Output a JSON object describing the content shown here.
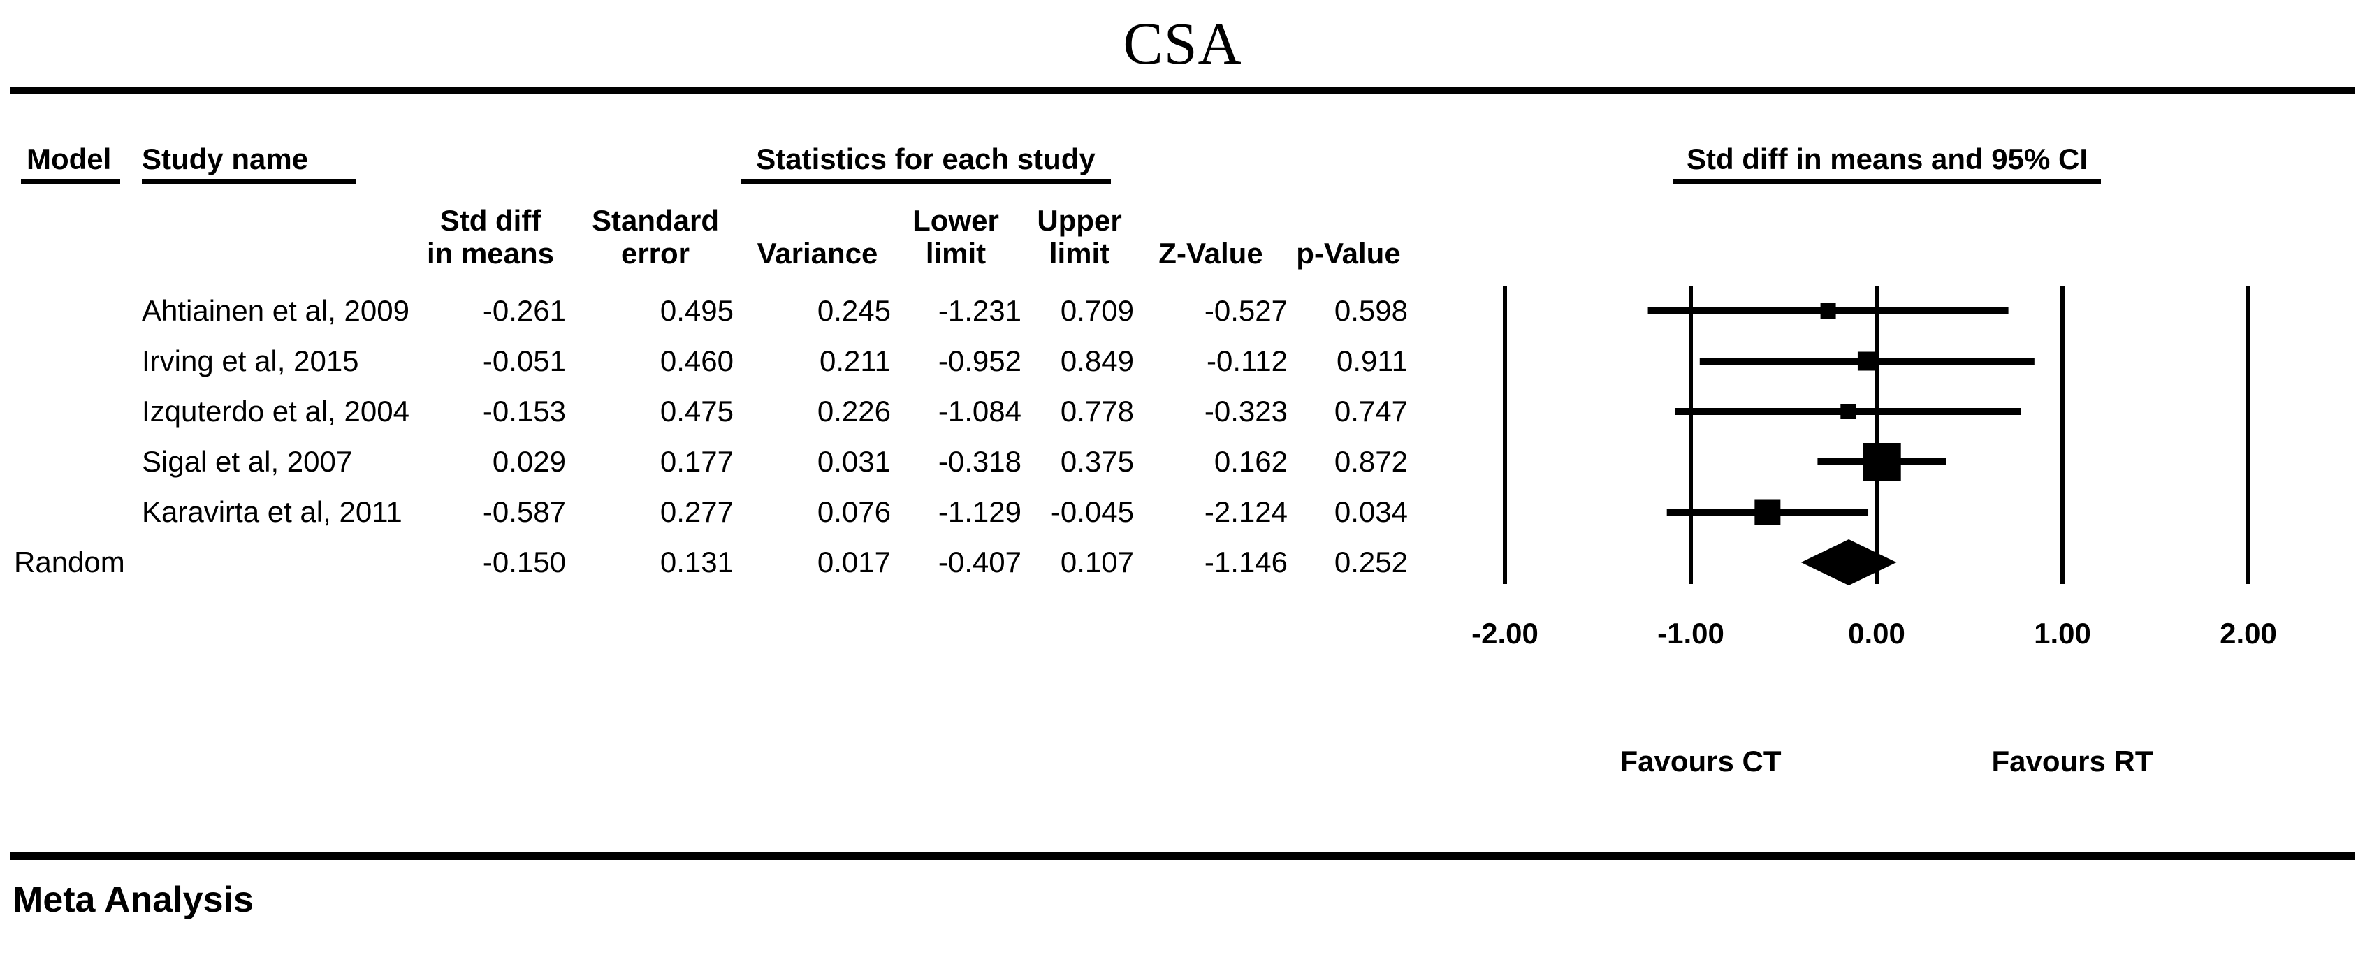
{
  "title": "CSA",
  "footer": "Meta Analysis",
  "colors": {
    "ink": "#000000",
    "background": "#ffffff"
  },
  "table": {
    "headers": {
      "model": "Model",
      "study_name": "Study name",
      "stats_group": "Statistics for each study",
      "plot_group": "Std diff in means and 95% CI"
    },
    "sub_headers": [
      {
        "line1": "Std diff",
        "line2": "in means"
      },
      {
        "line1": "Standard",
        "line2": "error"
      },
      {
        "line1": "",
        "line2": "Variance"
      },
      {
        "line1": "Lower",
        "line2": "limit"
      },
      {
        "line1": "Upper",
        "line2": "limit"
      },
      {
        "line1": "",
        "line2": "Z-Value"
      },
      {
        "line1": "",
        "line2": "p-Value"
      }
    ],
    "rows": [
      {
        "model": "",
        "study": "Ahtiainen et al, 2009",
        "values": [
          "-0.261",
          "0.495",
          "0.245",
          "-1.231",
          "0.709",
          "-0.527",
          "0.598"
        ]
      },
      {
        "model": "",
        "study": "Irving et al, 2015",
        "values": [
          "-0.051",
          "0.460",
          "0.211",
          "-0.952",
          "0.849",
          "-0.112",
          "0.911"
        ]
      },
      {
        "model": "",
        "study": "Izquterdo et al, 2004",
        "values": [
          "-0.153",
          "0.475",
          "0.226",
          "-1.084",
          "0.778",
          "-0.323",
          "0.747"
        ]
      },
      {
        "model": "",
        "study": "Sigal et al, 2007",
        "values": [
          "0.029",
          "0.177",
          "0.031",
          "-0.318",
          "0.375",
          "0.162",
          "0.872"
        ]
      },
      {
        "model": "",
        "study": "Karavirta et al, 2011",
        "values": [
          "-0.587",
          "0.277",
          "0.076",
          "-1.129",
          "-0.045",
          "-2.124",
          "0.034"
        ]
      },
      {
        "model": "Random",
        "study": "",
        "values": [
          "-0.150",
          "0.131",
          "0.017",
          "-0.407",
          "0.107",
          "-1.146",
          "0.252"
        ]
      }
    ]
  },
  "chart_data": {
    "type": "forest",
    "title": "CSA",
    "effect_measure": "Std diff in means and 95% CI",
    "x_axis": {
      "ticks": [
        -2,
        -1,
        0,
        1,
        2
      ],
      "tick_labels": [
        "-2.00",
        "-1.00",
        "0.00",
        "1.00",
        "2.00"
      ],
      "xlim": [
        -2.5,
        2.6
      ],
      "grid": true
    },
    "studies": [
      {
        "name": "Ahtiainen et al, 2009",
        "mean": -0.261,
        "lower": -1.231,
        "upper": 0.709,
        "marker_px": 22
      },
      {
        "name": "Irving et al, 2015",
        "mean": -0.051,
        "lower": -0.952,
        "upper": 0.849,
        "marker_px": 27
      },
      {
        "name": "Izquterdo et al, 2004",
        "mean": -0.153,
        "lower": -1.084,
        "upper": 0.778,
        "marker_px": 22
      },
      {
        "name": "Sigal et al, 2007",
        "mean": 0.029,
        "lower": -0.318,
        "upper": 0.375,
        "marker_px": 54
      },
      {
        "name": "Karavirta et al, 2011",
        "mean": -0.587,
        "lower": -1.129,
        "upper": -0.045,
        "marker_px": 37
      }
    ],
    "summary": {
      "name": "Random",
      "mean": -0.15,
      "lower": -0.407,
      "upper": 0.107,
      "diamond_half_height": 33
    },
    "footnote_left": "Favours CT",
    "footnote_right": "Favours RT"
  }
}
